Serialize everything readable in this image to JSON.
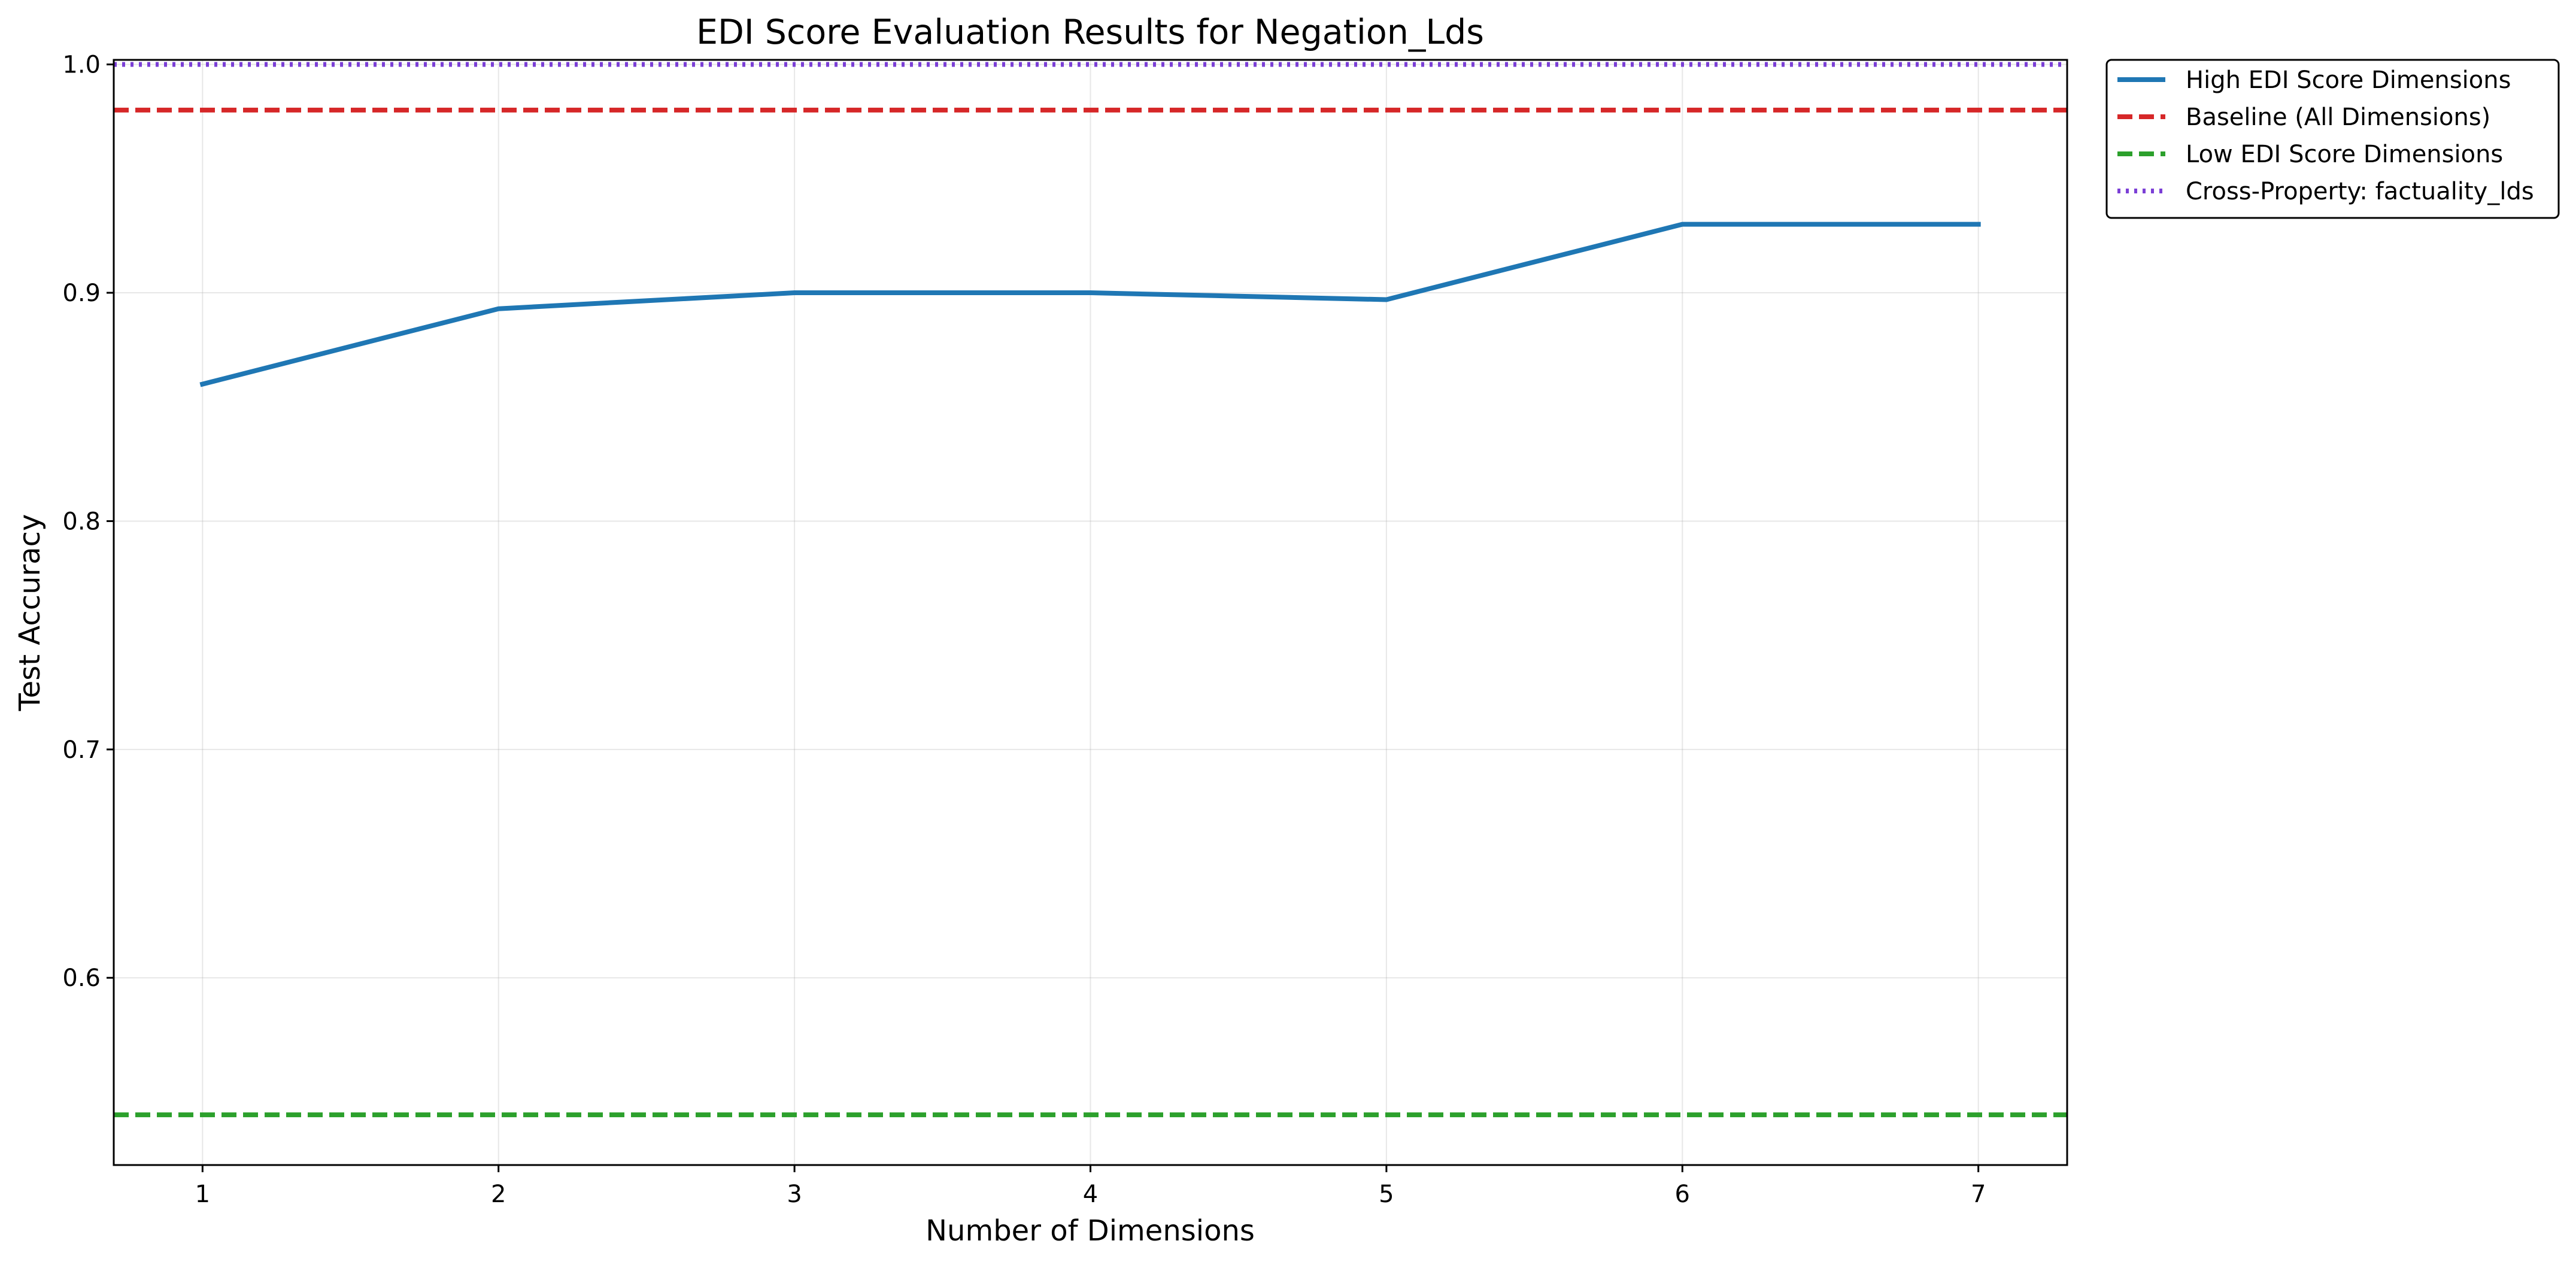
{
  "chart_data": {
    "type": "line",
    "title": "EDI Score Evaluation Results for Negation_Lds",
    "xlabel": "Number of Dimensions",
    "ylabel": "Test Accuracy",
    "xlim": [
      0.7,
      7.3
    ],
    "ylim": [
      0.518,
      1.002
    ],
    "x_ticks": [
      1,
      2,
      3,
      4,
      5,
      6,
      7
    ],
    "y_ticks": [
      0.6,
      0.7,
      0.8,
      0.9,
      1.0
    ],
    "y_tick_labels": [
      "0.6",
      "0.7",
      "0.8",
      "0.9",
      "1.0"
    ],
    "grid": true,
    "legend_position": "outside top-right",
    "series": [
      {
        "name": "High EDI Score Dimensions",
        "style": "solid",
        "color": "#1f77b4",
        "x": [
          1,
          2,
          3,
          4,
          5,
          6,
          7
        ],
        "y": [
          0.86,
          0.893,
          0.9,
          0.9,
          0.897,
          0.93,
          0.93
        ]
      },
      {
        "name": "Baseline (All Dimensions)",
        "style": "dashed",
        "color": "#d62728",
        "hline": 0.98
      },
      {
        "name": "Low EDI Score Dimensions",
        "style": "dashed",
        "color": "#2ca02c",
        "hline": 0.54
      },
      {
        "name": "Cross-Property: factuality_lds",
        "style": "dotted",
        "color": "#7b3fd6",
        "hline": 1.0
      }
    ]
  }
}
